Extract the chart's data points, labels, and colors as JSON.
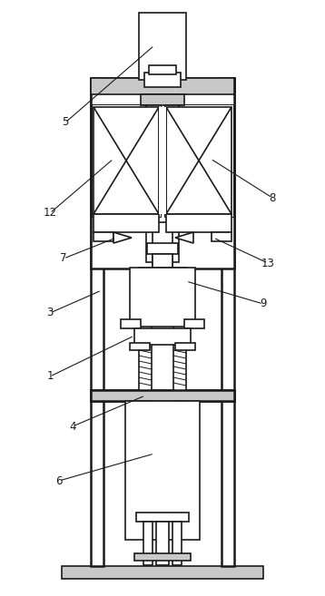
{
  "bg_color": "#ffffff",
  "line_color": "#1a1a1a",
  "lw": 1.2,
  "lw_thick": 1.8,
  "lw_thin": 0.7,
  "gray_light": "#c8c8c8",
  "gray_med": "#b0b0b0"
}
